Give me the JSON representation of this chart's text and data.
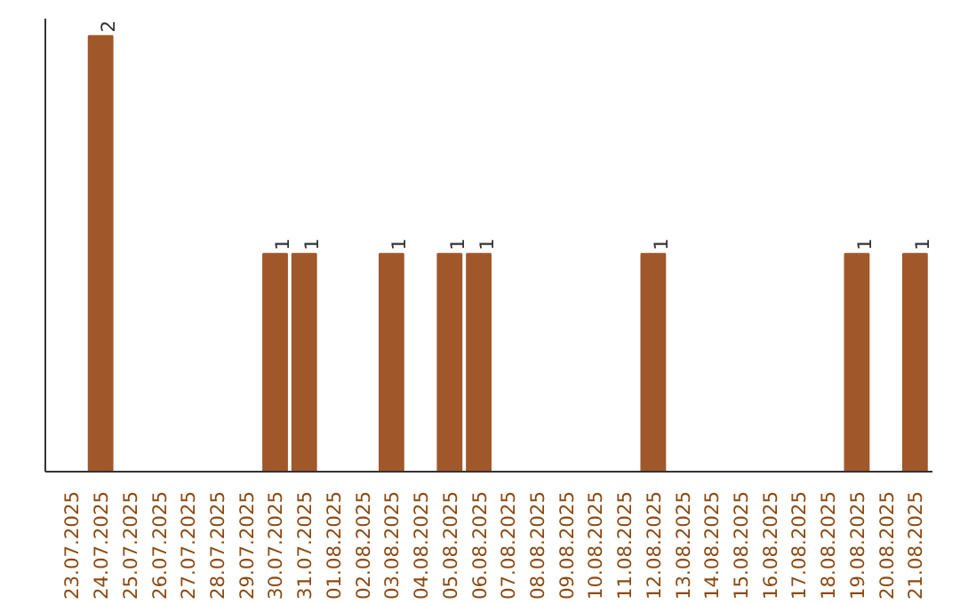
{
  "chart_data": {
    "type": "bar",
    "categories": [
      "23.07.2025",
      "24.07.2025",
      "25.07.2025",
      "26.07.2025",
      "27.07.2025",
      "28.07.2025",
      "29.07.2025",
      "30.07.2025",
      "31.07.2025",
      "01.08.2025",
      "02.08.2025",
      "03.08.2025",
      "04.08.2025",
      "05.08.2025",
      "06.08.2025",
      "07.08.2025",
      "08.08.2025",
      "09.08.2025",
      "10.08.2025",
      "11.08.2025",
      "12.08.2025",
      "13.08.2025",
      "14.08.2025",
      "15.08.2025",
      "16.08.2025",
      "17.08.2025",
      "18.08.2025",
      "19.08.2025",
      "20.08.2025",
      "21.08.2025"
    ],
    "values": [
      0,
      2,
      0,
      0,
      0,
      0,
      0,
      1,
      1,
      0,
      0,
      1,
      0,
      1,
      1,
      0,
      0,
      0,
      0,
      0,
      1,
      0,
      0,
      0,
      0,
      0,
      0,
      1,
      0,
      1
    ],
    "value_labels": [
      null,
      "2",
      null,
      null,
      null,
      null,
      null,
      "1",
      "1",
      null,
      null,
      "1",
      null,
      "1",
      "1",
      null,
      null,
      null,
      null,
      null,
      "1",
      null,
      null,
      null,
      null,
      null,
      null,
      "1",
      null,
      "1"
    ],
    "color": "#a0582b",
    "grid": false,
    "tick_labels": "x"
  }
}
